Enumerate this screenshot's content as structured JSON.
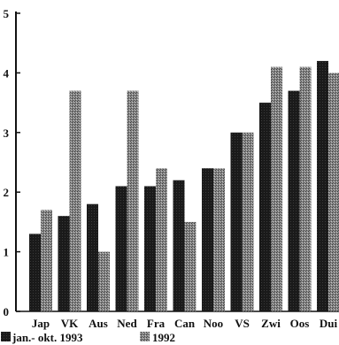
{
  "chart_data": {
    "type": "bar",
    "title": "",
    "xlabel": "",
    "ylabel": "",
    "categories": [
      "Jap",
      "VK",
      "Aus",
      "Ned",
      "Fra",
      "Can",
      "Noo",
      "VS",
      "Zwi",
      "Oos",
      "Dui"
    ],
    "series": [
      {
        "name": "jan.- okt. 1993",
        "color": "#1a1a1a",
        "values": [
          1.3,
          1.6,
          1.8,
          2.1,
          2.1,
          2.2,
          2.4,
          3.0,
          3.5,
          3.7,
          4.2
        ]
      },
      {
        "name": "1992",
        "color": "#7a7a7a",
        "values": [
          1.7,
          3.7,
          1.0,
          3.7,
          2.4,
          1.5,
          2.4,
          3.0,
          4.1,
          4.1,
          4.0
        ]
      }
    ],
    "ylim": [
      0,
      5
    ],
    "yticks": [
      "0",
      "1",
      "2",
      "3",
      "4",
      "5"
    ],
    "grid": false,
    "legend_position": "bottom-left"
  }
}
